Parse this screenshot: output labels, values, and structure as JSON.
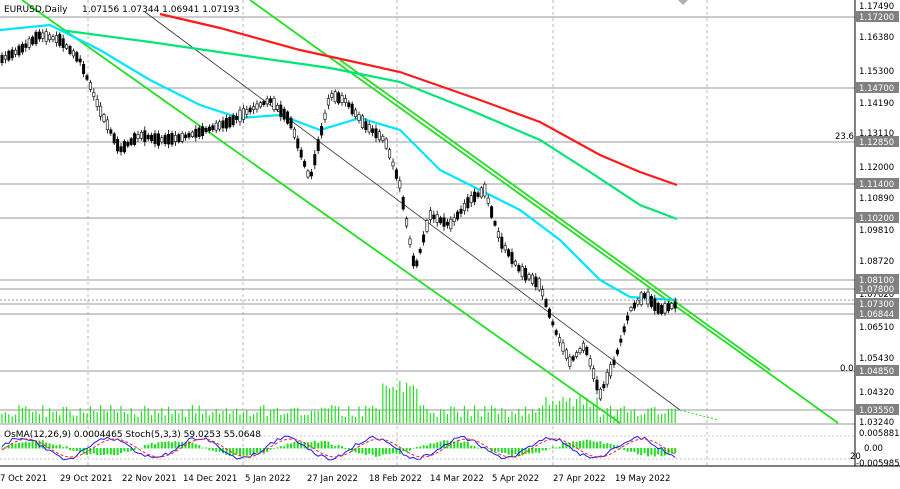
{
  "window": {
    "title_symbol": "EURUSD,Daily",
    "ohlc": "1.07156 1.07344 1.06941 1.07193"
  },
  "price_axis": {
    "ticks": [
      "1.17200",
      "1.16380",
      "1.15300",
      "1.14190",
      "1.13110",
      "1.12000",
      "1.10890",
      "1.09810",
      "1.08720",
      "1.07620",
      "1.06510",
      "1.05430",
      "1.04320",
      "1.03240"
    ],
    "highlighted": [
      "1.17200",
      "1.14700",
      "1.12850",
      "1.11400",
      "1.10200",
      "1.08100",
      "1.07800",
      "1.07300",
      "1.06844",
      "1.04850",
      "1.03550"
    ],
    "top_value": "1.17490",
    "fib_labels": [
      "23.6",
      "0.0"
    ]
  },
  "time_axis": {
    "labels": [
      "7 Oct 2021",
      "29 Oct 2021",
      "22 Nov 2021",
      "14 Dec 2021",
      "5 Jan 2022",
      "27 Jan 2022",
      "18 Feb 2022",
      "14 Mar 2022",
      "5 Apr 2022",
      "27 Apr 2022",
      "19 May 2022"
    ]
  },
  "indicator": {
    "title": "OsMA(12,26,9) 0.0004465  Stoch(5,3,3) 59.0253 55.0648",
    "axis_labels": [
      "0.0058815",
      "0.00",
      "20",
      "-0.005985"
    ]
  },
  "colors": {
    "background": "#ffffff",
    "tag_bg": "#808080",
    "ma_fast": "#00e5ff",
    "ma_mid": "#00e676",
    "ma_slow": "#ff1a1a",
    "channel": "#22e022",
    "candles": "#000000",
    "volume": "#22e022",
    "osma": "#22dd22",
    "stoch_main": "#1a1aff",
    "stoch_signal": "#ff2020"
  }
}
